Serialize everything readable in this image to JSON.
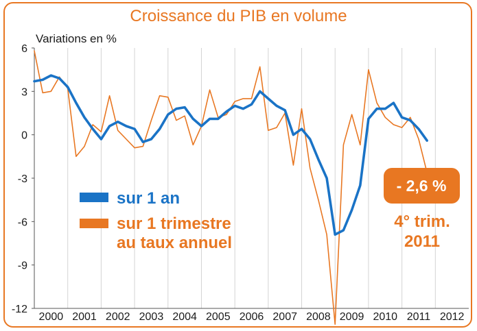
{
  "chart_data": {
    "type": "line",
    "title": "Croissance du PIB en volume",
    "ylabel": "Variations en %",
    "ylim": [
      -12,
      6
    ],
    "yticks": [
      6,
      3,
      0,
      -3,
      -6,
      -9,
      -12
    ],
    "x_period_labels": [
      "2000",
      "2001",
      "2002",
      "2003",
      "2004",
      "2005",
      "2006",
      "2007",
      "2008",
      "2009",
      "2010",
      "2011",
      "2012"
    ],
    "x_range": [
      2000.0,
      2013.0
    ],
    "grid": "vertical",
    "series": [
      {
        "name": "sur 1 an",
        "color": "#1a73c6",
        "x": [
          2000.0,
          2000.25,
          2000.5,
          2000.75,
          2001.0,
          2001.25,
          2001.5,
          2001.75,
          2002.0,
          2002.25,
          2002.5,
          2002.75,
          2003.0,
          2003.25,
          2003.5,
          2003.75,
          2004.0,
          2004.25,
          2004.5,
          2004.75,
          2005.0,
          2005.25,
          2005.5,
          2005.75,
          2006.0,
          2006.25,
          2006.5,
          2006.75,
          2007.0,
          2007.25,
          2007.5,
          2007.75,
          2008.0,
          2008.25,
          2008.5,
          2008.75,
          2009.0,
          2009.25,
          2009.5,
          2009.75,
          2010.0,
          2010.25,
          2010.5,
          2010.75,
          2011.0,
          2011.25,
          2011.5,
          2011.75
        ],
        "values": [
          3.7,
          3.8,
          4.1,
          3.9,
          3.3,
          2.2,
          1.2,
          0.4,
          -0.3,
          0.6,
          0.9,
          0.6,
          0.4,
          -0.5,
          -0.3,
          0.4,
          1.4,
          1.8,
          1.9,
          1.1,
          0.6,
          1.1,
          1.1,
          1.6,
          2.0,
          1.8,
          2.1,
          3.0,
          2.5,
          2.0,
          1.7,
          0.0,
          0.4,
          -0.3,
          -1.7,
          -3.0,
          -6.9,
          -6.6,
          -5.2,
          -3.5,
          1.1,
          1.8,
          1.8,
          2.2,
          1.2,
          1.0,
          0.4,
          -0.4
        ]
      },
      {
        "name": "sur 1 trimestre au taux annuel",
        "color": "#e87722",
        "x": [
          2000.0,
          2000.25,
          2000.5,
          2000.75,
          2001.0,
          2001.25,
          2001.5,
          2001.75,
          2002.0,
          2002.25,
          2002.5,
          2002.75,
          2003.0,
          2003.25,
          2003.5,
          2003.75,
          2004.0,
          2004.25,
          2004.5,
          2004.75,
          2005.0,
          2005.25,
          2005.5,
          2005.75,
          2006.0,
          2006.25,
          2006.5,
          2006.75,
          2007.0,
          2007.25,
          2007.5,
          2007.75,
          2008.0,
          2008.25,
          2008.5,
          2008.75,
          2009.0,
          2009.25,
          2009.5,
          2009.75,
          2010.0,
          2010.25,
          2010.5,
          2010.75,
          2011.0,
          2011.25,
          2011.5,
          2011.75
        ],
        "values": [
          5.8,
          2.9,
          3.0,
          4.0,
          3.2,
          -1.5,
          -0.8,
          0.7,
          0.2,
          2.7,
          0.3,
          -0.3,
          -0.9,
          -0.8,
          1.0,
          2.7,
          2.6,
          1.0,
          1.3,
          -0.7,
          0.6,
          3.1,
          1.2,
          1.4,
          2.3,
          2.5,
          2.5,
          4.7,
          0.3,
          0.5,
          1.5,
          -2.1,
          1.8,
          -2.3,
          -4.5,
          -6.9,
          -13.1,
          -0.7,
          1.4,
          -0.7,
          4.5,
          2.2,
          1.2,
          0.7,
          0.5,
          1.2,
          -0.3,
          -2.6
        ]
      }
    ],
    "legend": [
      {
        "label": "sur 1 an",
        "color": "#1a73c6"
      },
      {
        "label_lines": [
          "sur 1 trimestre",
          "au taux annuel"
        ],
        "color": "#e87722"
      }
    ],
    "annotation": {
      "badge": "- 2,6 %",
      "lines": [
        "4° trim.",
        "2011"
      ],
      "color": "#e87722"
    }
  }
}
